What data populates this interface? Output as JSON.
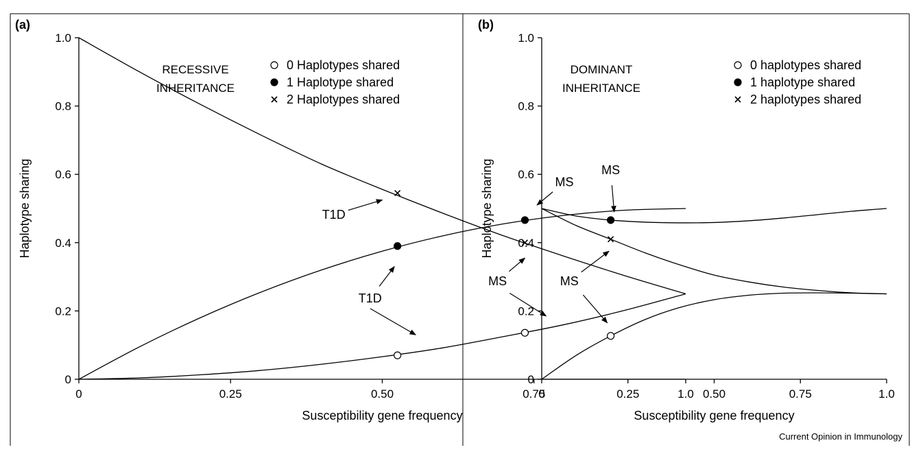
{
  "credit": "Current Opinion in Immunology",
  "chart_data": [
    {
      "panel_label": "(a)",
      "type": "line",
      "xlabel": "Susceptibility gene frequency",
      "ylabel": "Haplotype sharing",
      "xlim": [
        0,
        1.0
      ],
      "ylim": [
        0,
        1.0
      ],
      "x_ticks": [
        "0",
        "0.25",
        "0.50",
        "0.75",
        "1.0"
      ],
      "y_ticks": [
        "0",
        "0.2",
        "0.4",
        "0.6",
        "0.8",
        "1.0"
      ],
      "inheritance": [
        "RECESSIVE",
        "INHERITANCE"
      ],
      "legend": [
        {
          "marker": "open-circle",
          "label": "0 Haplotypes shared"
        },
        {
          "marker": "filled-circle",
          "label": "1 Haplotype shared"
        },
        {
          "marker": "cross",
          "label": "2 Haplotypes shared"
        }
      ],
      "series": [
        {
          "marker": "cross",
          "x": [
            0,
            0.1,
            0.2,
            0.3,
            0.4,
            0.5,
            0.6,
            0.7,
            0.8,
            0.9,
            1.0
          ],
          "y": [
            1.0,
            0.9,
            0.805,
            0.715,
            0.63,
            0.556,
            0.486,
            0.42,
            0.36,
            0.303,
            0.25
          ]
        },
        {
          "marker": "filled-circle",
          "x": [
            0,
            0.1,
            0.2,
            0.3,
            0.4,
            0.5,
            0.6,
            0.7,
            0.8,
            0.9,
            1.0
          ],
          "y": [
            0,
            0.095,
            0.18,
            0.255,
            0.32,
            0.375,
            0.42,
            0.455,
            0.48,
            0.495,
            0.5
          ]
        },
        {
          "marker": "open-circle",
          "x": [
            0,
            0.1,
            0.2,
            0.3,
            0.4,
            0.5,
            0.6,
            0.7,
            0.8,
            0.9,
            1.0
          ],
          "y": [
            0,
            0.004,
            0.013,
            0.026,
            0.044,
            0.066,
            0.092,
            0.125,
            0.16,
            0.202,
            0.25
          ]
        }
      ],
      "points": [
        {
          "disease": "T1D",
          "marker": "cross",
          "x": 0.525,
          "y": 0.545
        },
        {
          "disease": "T1D",
          "marker": "filled-circle",
          "x": 0.525,
          "y": 0.39
        },
        {
          "disease": "T1D",
          "marker": "open-circle",
          "x": 0.525,
          "y": 0.07
        },
        {
          "disease": "MS",
          "marker": "filled-circle",
          "x": 0.735,
          "y": 0.466
        },
        {
          "disease": "MS",
          "marker": "cross",
          "x": 0.735,
          "y": 0.4
        },
        {
          "disease": "MS",
          "marker": "open-circle",
          "x": 0.735,
          "y": 0.136
        }
      ],
      "annotations": [
        {
          "text": "T1D",
          "x": 0.42,
          "y": 0.47,
          "target_x": 0.5,
          "target_y": 0.525
        },
        {
          "text": "T1D",
          "x": 0.48,
          "y": 0.225,
          "target_x": 0.52,
          "target_y": 0.33
        },
        {
          "text": "",
          "x": 0.48,
          "y": 0.195,
          "target_x": 0.555,
          "target_y": 0.13
        },
        {
          "text": "MS",
          "x": 0.8,
          "y": 0.565,
          "target_x": 0.755,
          "target_y": 0.51
        },
        {
          "text": "MS",
          "x": 0.69,
          "y": 0.275,
          "target_x": 0.735,
          "target_y": 0.355
        },
        {
          "text": "",
          "x": 0.71,
          "y": 0.24,
          "target_x": 0.77,
          "target_y": 0.185
        }
      ]
    },
    {
      "panel_label": "(b)",
      "type": "line",
      "xlabel": "Susceptibility gene frequency",
      "ylabel": "Haplotype sharing",
      "xlim": [
        0,
        1.0
      ],
      "ylim": [
        0,
        1.0
      ],
      "x_ticks": [
        "0",
        "0.25",
        "0.50",
        "0.75",
        "1.0"
      ],
      "y_ticks": [
        "0",
        "0.2",
        "0.4",
        "0.6",
        "0.8",
        "1.0"
      ],
      "inheritance": [
        "DOMINANT",
        "INHERITANCE"
      ],
      "legend": [
        {
          "marker": "open-circle",
          "label": "0 haplotypes shared"
        },
        {
          "marker": "filled-circle",
          "label": "1 haplotype shared"
        },
        {
          "marker": "cross",
          "label": "2 haplotypes shared"
        }
      ],
      "series": [
        {
          "marker": "filled-circle",
          "x": [
            0,
            0.1,
            0.2,
            0.3,
            0.4,
            0.5,
            0.6,
            0.7,
            0.8,
            0.9,
            1.0
          ],
          "y": [
            0.5,
            0.478,
            0.466,
            0.46,
            0.458,
            0.459,
            0.464,
            0.472,
            0.482,
            0.492,
            0.5
          ]
        },
        {
          "marker": "cross",
          "x": [
            0,
            0.1,
            0.2,
            0.3,
            0.4,
            0.5,
            0.6,
            0.7,
            0.8,
            0.9,
            1.0
          ],
          "y": [
            0.5,
            0.45,
            0.41,
            0.37,
            0.335,
            0.305,
            0.285,
            0.27,
            0.26,
            0.253,
            0.25
          ]
        },
        {
          "marker": "open-circle",
          "x": [
            0,
            0.1,
            0.2,
            0.3,
            0.4,
            0.5,
            0.6,
            0.7,
            0.8,
            0.9,
            1.0
          ],
          "y": [
            0,
            0.07,
            0.127,
            0.175,
            0.21,
            0.233,
            0.246,
            0.252,
            0.253,
            0.252,
            0.25
          ]
        }
      ],
      "points": [
        {
          "disease": "MS",
          "marker": "filled-circle",
          "x": 0.2,
          "y": 0.466
        },
        {
          "disease": "MS",
          "marker": "cross",
          "x": 0.2,
          "y": 0.41
        },
        {
          "disease": "MS",
          "marker": "open-circle",
          "x": 0.2,
          "y": 0.127
        }
      ],
      "annotations": [
        {
          "text": "MS",
          "x": 0.2,
          "y": 0.6,
          "target_x": 0.21,
          "target_y": 0.49
        },
        {
          "text": "MS",
          "x": 0.08,
          "y": 0.275,
          "target_x": 0.195,
          "target_y": 0.375
        },
        {
          "text": "",
          "x": 0.12,
          "y": 0.235,
          "target_x": 0.19,
          "target_y": 0.165
        }
      ]
    }
  ]
}
